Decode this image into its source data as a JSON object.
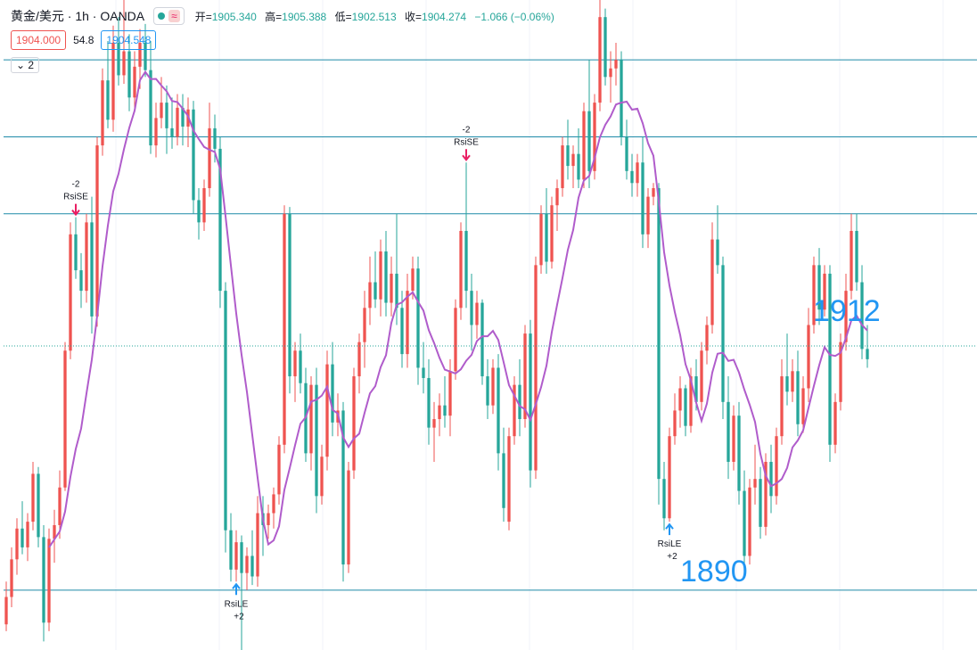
{
  "header": {
    "symbol": "黄金/美元 · 1h · OANDA",
    "status_icon": "green-dot-icon",
    "wave_icon": "≈",
    "ohlc": {
      "open_label": "开=",
      "open": "1905.340",
      "high_label": "高=",
      "high": "1905.388",
      "low_label": "低=",
      "low": "1902.513",
      "close_label": "收=",
      "close": "1904.274",
      "change": "−1.066 (−0.06%)"
    }
  },
  "quote": {
    "sell": "1904.000",
    "spread": "54.8",
    "buy": "1904.548"
  },
  "indicator_collapse": {
    "icon": "chevron-down-icon",
    "count": "2"
  },
  "colors": {
    "up": "#ef5350",
    "down": "#26a69a",
    "ma": "#b05ccb",
    "hline": "#1e8aa8",
    "label": "#2196f3",
    "signal_sell": "#e91e63",
    "signal_buy": "#2196f3"
  },
  "chart_data": {
    "type": "candlestick",
    "ma_period": 9,
    "ylim": [
      1886.5,
      1924.5
    ],
    "current_price": 1904.274,
    "horizontal_lines": [
      1921.0,
      1916.5,
      1912.0,
      1890.0
    ],
    "level_labels": [
      "1912",
      "1890"
    ],
    "signals": [
      {
        "index": 13,
        "side": "sell",
        "label": "RsiSE",
        "qty": "-2"
      },
      {
        "index": 86,
        "side": "sell",
        "label": "RsiSE",
        "qty": "-2"
      },
      {
        "index": 43,
        "side": "buy",
        "label": "RsiLE",
        "qty": "+2"
      },
      {
        "index": 124,
        "side": "buy",
        "label": "RsiLE",
        "qty": "+2"
      }
    ],
    "candles": [
      [
        1888.0,
        1890.5,
        1887.6,
        1889.6
      ],
      [
        1889.6,
        1892.5,
        1889.0,
        1891.8
      ],
      [
        1891.8,
        1894.2,
        1890.9,
        1893.6
      ],
      [
        1893.6,
        1895.2,
        1892.1,
        1892.5
      ],
      [
        1892.5,
        1894.5,
        1891.7,
        1894.0
      ],
      [
        1894.0,
        1897.5,
        1893.5,
        1896.8
      ],
      [
        1896.8,
        1897.2,
        1892.5,
        1893.1
      ],
      [
        1893.1,
        1893.8,
        1887.0,
        1888.1
      ],
      [
        1888.1,
        1893.6,
        1887.6,
        1893.0
      ],
      [
        1893.0,
        1894.7,
        1891.6,
        1893.8
      ],
      [
        1893.8,
        1897.0,
        1893.0,
        1896.0
      ],
      [
        1896.0,
        1904.5,
        1895.8,
        1904.0
      ],
      [
        1904.0,
        1911.5,
        1903.5,
        1910.8
      ],
      [
        1910.8,
        1911.8,
        1908.2,
        1908.7
      ],
      [
        1908.7,
        1909.7,
        1906.5,
        1907.5
      ],
      [
        1907.5,
        1912.0,
        1906.8,
        1911.5
      ],
      [
        1911.5,
        1913.0,
        1905.0,
        1906.0
      ],
      [
        1906.0,
        1916.5,
        1905.4,
        1916.0
      ],
      [
        1916.0,
        1920.5,
        1915.4,
        1919.8
      ],
      [
        1919.8,
        1922.1,
        1917.0,
        1917.5
      ],
      [
        1917.5,
        1923.0,
        1916.8,
        1922.0
      ],
      [
        1922.0,
        1923.5,
        1919.5,
        1920.1
      ],
      [
        1920.1,
        1924.5,
        1919.6,
        1921.5
      ],
      [
        1921.5,
        1922.5,
        1918.0,
        1918.8
      ],
      [
        1918.8,
        1921.5,
        1918.0,
        1920.6
      ],
      [
        1920.6,
        1922.8,
        1919.3,
        1922.0
      ],
      [
        1922.0,
        1923.1,
        1920.0,
        1920.4
      ],
      [
        1920.4,
        1922.1,
        1915.5,
        1916.0
      ],
      [
        1916.0,
        1918.5,
        1915.3,
        1917.6
      ],
      [
        1917.6,
        1920.0,
        1917.0,
        1918.5
      ],
      [
        1918.5,
        1919.5,
        1915.5,
        1917.0
      ],
      [
        1917.0,
        1918.8,
        1915.8,
        1916.5
      ],
      [
        1916.5,
        1919.0,
        1916.0,
        1918.2
      ],
      [
        1918.2,
        1919.0,
        1916.0,
        1917.1
      ],
      [
        1917.1,
        1918.8,
        1915.9,
        1918.1
      ],
      [
        1918.1,
        1918.6,
        1912.0,
        1912.8
      ],
      [
        1912.8,
        1913.5,
        1910.5,
        1911.5
      ],
      [
        1911.5,
        1914.0,
        1911.0,
        1913.5
      ],
      [
        1913.5,
        1918.5,
        1913.0,
        1917.0
      ],
      [
        1917.0,
        1917.8,
        1915.0,
        1915.8
      ],
      [
        1915.8,
        1916.5,
        1906.5,
        1907.5
      ],
      [
        1907.5,
        1908.0,
        1892.2,
        1893.5
      ],
      [
        1893.5,
        1894.5,
        1890.5,
        1891.2
      ],
      [
        1891.2,
        1893.5,
        1890.5,
        1892.8
      ],
      [
        1892.8,
        1893.2,
        1886.5,
        1891.0
      ],
      [
        1891.0,
        1892.5,
        1890.0,
        1892.0
      ],
      [
        1892.0,
        1893.5,
        1890.3,
        1890.8
      ],
      [
        1890.8,
        1895.5,
        1890.2,
        1894.5
      ],
      [
        1894.5,
        1895.5,
        1892.0,
        1893.8
      ],
      [
        1893.8,
        1895.0,
        1893.0,
        1894.5
      ],
      [
        1894.5,
        1896.0,
        1893.6,
        1895.6
      ],
      [
        1895.6,
        1899.0,
        1895.0,
        1898.5
      ],
      [
        1898.5,
        1912.5,
        1898.0,
        1912.0
      ],
      [
        1912.0,
        1912.4,
        1901.5,
        1902.5
      ],
      [
        1902.5,
        1904.5,
        1901.0,
        1904.0
      ],
      [
        1904.0,
        1905.0,
        1901.5,
        1902.1
      ],
      [
        1902.1,
        1903.0,
        1897.5,
        1898.0
      ],
      [
        1898.0,
        1902.5,
        1897.0,
        1902.0
      ],
      [
        1902.0,
        1903.0,
        1894.5,
        1895.5
      ],
      [
        1895.5,
        1898.5,
        1895.0,
        1897.8
      ],
      [
        1897.8,
        1904.0,
        1897.0,
        1903.2
      ],
      [
        1903.2,
        1904.5,
        1899.0,
        1899.8
      ],
      [
        1899.8,
        1901.5,
        1899.0,
        1900.5
      ],
      [
        1900.5,
        1901.0,
        1890.5,
        1891.5
      ],
      [
        1891.5,
        1897.5,
        1891.0,
        1897.0
      ],
      [
        1897.0,
        1903.0,
        1896.5,
        1902.5
      ],
      [
        1902.5,
        1905.0,
        1901.5,
        1904.5
      ],
      [
        1904.5,
        1907.5,
        1903.0,
        1906.5
      ],
      [
        1906.5,
        1909.5,
        1905.5,
        1908.0
      ],
      [
        1908.0,
        1909.8,
        1906.5,
        1907.0
      ],
      [
        1907.0,
        1910.5,
        1906.0,
        1909.8
      ],
      [
        1909.8,
        1911.0,
        1906.0,
        1906.8
      ],
      [
        1906.8,
        1909.5,
        1906.0,
        1908.5
      ],
      [
        1908.5,
        1912.0,
        1905.5,
        1906.5
      ],
      [
        1906.5,
        1907.5,
        1903.0,
        1903.8
      ],
      [
        1903.8,
        1908.5,
        1903.0,
        1907.5
      ],
      [
        1907.5,
        1909.5,
        1907.0,
        1908.8
      ],
      [
        1908.8,
        1909.5,
        1902.0,
        1903.0
      ],
      [
        1903.0,
        1904.5,
        1901.5,
        1902.4
      ],
      [
        1902.4,
        1903.5,
        1898.5,
        1899.5
      ],
      [
        1899.5,
        1901.0,
        1897.5,
        1900.0
      ],
      [
        1900.0,
        1901.5,
        1899.0,
        1900.8
      ],
      [
        1900.8,
        1902.5,
        1899.5,
        1900.2
      ],
      [
        1900.2,
        1903.5,
        1899.0,
        1902.8
      ],
      [
        1902.8,
        1907.0,
        1902.3,
        1906.5
      ],
      [
        1906.5,
        1911.5,
        1905.8,
        1911.0
      ],
      [
        1911.0,
        1915.0,
        1906.5,
        1907.5
      ],
      [
        1907.5,
        1908.5,
        1904.0,
        1905.5
      ],
      [
        1905.5,
        1907.5,
        1904.7,
        1906.8
      ],
      [
        1906.8,
        1907.0,
        1902.0,
        1902.5
      ],
      [
        1902.5,
        1903.5,
        1900.0,
        1900.8
      ],
      [
        1900.8,
        1903.5,
        1900.3,
        1903.0
      ],
      [
        1903.0,
        1903.8,
        1897.0,
        1898.0
      ],
      [
        1898.0,
        1899.5,
        1894.0,
        1894.8
      ],
      [
        1894.0,
        1899.5,
        1893.5,
        1899.0
      ],
      [
        1899.0,
        1902.5,
        1898.5,
        1902.0
      ],
      [
        1902.0,
        1903.5,
        1899.0,
        1900.0
      ],
      [
        1900.0,
        1905.5,
        1899.5,
        1905.0
      ],
      [
        1905.0,
        1905.8,
        1896.0,
        1897.0
      ],
      [
        1897.0,
        1909.5,
        1896.5,
        1909.0
      ],
      [
        1909.0,
        1912.5,
        1908.5,
        1912.0
      ],
      [
        1912.0,
        1913.5,
        1908.5,
        1909.2
      ],
      [
        1909.2,
        1913.0,
        1908.8,
        1912.5
      ],
      [
        1912.5,
        1914.0,
        1911.0,
        1913.5
      ],
      [
        1913.5,
        1916.5,
        1913.0,
        1916.0
      ],
      [
        1916.0,
        1917.5,
        1914.0,
        1914.8
      ],
      [
        1914.8,
        1916.0,
        1913.5,
        1915.5
      ],
      [
        1915.5,
        1917.0,
        1913.5,
        1914.0
      ],
      [
        1914.0,
        1918.5,
        1913.5,
        1918.0
      ],
      [
        1918.0,
        1921.0,
        1913.5,
        1914.5
      ],
      [
        1914.5,
        1919.0,
        1914.0,
        1918.5
      ],
      [
        1918.5,
        1925.0,
        1918.0,
        1923.5
      ],
      [
        1923.5,
        1924.0,
        1919.5,
        1920.0
      ],
      [
        1920.0,
        1921.5,
        1918.5,
        1920.5
      ],
      [
        1920.5,
        1922.0,
        1919.5,
        1921.0
      ],
      [
        1921.0,
        1921.5,
        1916.0,
        1916.5
      ],
      [
        1916.5,
        1917.5,
        1914.0,
        1914.5
      ],
      [
        1914.5,
        1915.5,
        1913.0,
        1913.8
      ],
      [
        1913.8,
        1915.5,
        1913.0,
        1915.0
      ],
      [
        1915.0,
        1916.5,
        1910.0,
        1910.8
      ],
      [
        1910.8,
        1913.5,
        1910.0,
        1913.0
      ],
      [
        1913.0,
        1913.8,
        1912.5,
        1913.5
      ],
      [
        1913.5,
        1913.8,
        1895.0,
        1896.5
      ],
      [
        1896.5,
        1897.5,
        1893.5,
        1894.2
      ],
      [
        1894.2,
        1899.5,
        1894.0,
        1899.0
      ],
      [
        1899.0,
        1901.5,
        1898.5,
        1900.5
      ],
      [
        1900.5,
        1902.5,
        1899.5,
        1901.8
      ],
      [
        1901.8,
        1902.0,
        1899.0,
        1899.6
      ],
      [
        1899.6,
        1903.0,
        1899.2,
        1902.5
      ],
      [
        1902.5,
        1903.5,
        1900.5,
        1901.0
      ],
      [
        1901.0,
        1904.5,
        1900.5,
        1904.0
      ],
      [
        1904.0,
        1906.0,
        1903.2,
        1905.5
      ],
      [
        1905.5,
        1911.5,
        1905.0,
        1910.5
      ],
      [
        1910.5,
        1912.5,
        1908.5,
        1909.0
      ],
      [
        1909.0,
        1909.5,
        1900.0,
        1901.0
      ],
      [
        1901.0,
        1902.5,
        1896.5,
        1897.5
      ],
      [
        1897.5,
        1900.8,
        1897.0,
        1900.2
      ],
      [
        1900.2,
        1901.0,
        1895.0,
        1895.8
      ],
      [
        1895.8,
        1897.0,
        1891.5,
        1892.0
      ],
      [
        1892.0,
        1896.5,
        1891.5,
        1896.0
      ],
      [
        1896.0,
        1898.5,
        1895.0,
        1896.5
      ],
      [
        1896.5,
        1897.2,
        1893.0,
        1893.7
      ],
      [
        1893.7,
        1898.0,
        1893.2,
        1897.5
      ],
      [
        1897.5,
        1898.5,
        1894.5,
        1895.5
      ],
      [
        1895.5,
        1899.5,
        1895.0,
        1899.0
      ],
      [
        1899.0,
        1903.5,
        1898.5,
        1902.5
      ],
      [
        1902.5,
        1905.0,
        1900.8,
        1901.6
      ],
      [
        1901.6,
        1903.5,
        1901.0,
        1902.8
      ],
      [
        1902.8,
        1904.0,
        1899.0,
        1899.7
      ],
      [
        1899.7,
        1902.5,
        1899.2,
        1901.8
      ],
      [
        1901.8,
        1906.5,
        1901.0,
        1905.5
      ],
      [
        1905.5,
        1909.5,
        1905.0,
        1909.0
      ],
      [
        1909.0,
        1910.0,
        1905.5,
        1906.4
      ],
      [
        1906.4,
        1909.0,
        1906.0,
        1908.5
      ],
      [
        1908.5,
        1909.0,
        1897.5,
        1898.5
      ],
      [
        1898.5,
        1901.5,
        1898.0,
        1901.0
      ],
      [
        1901.0,
        1905.0,
        1900.5,
        1904.5
      ],
      [
        1904.5,
        1908.5,
        1904.0,
        1907.5
      ],
      [
        1907.5,
        1912.0,
        1907.0,
        1911.0
      ],
      [
        1911.0,
        1912.0,
        1907.5,
        1908.0
      ],
      [
        1908.0,
        1909.0,
        1903.5,
        1904.1
      ],
      [
        1904.1,
        1905.5,
        1903.0,
        1903.5
      ]
    ]
  }
}
